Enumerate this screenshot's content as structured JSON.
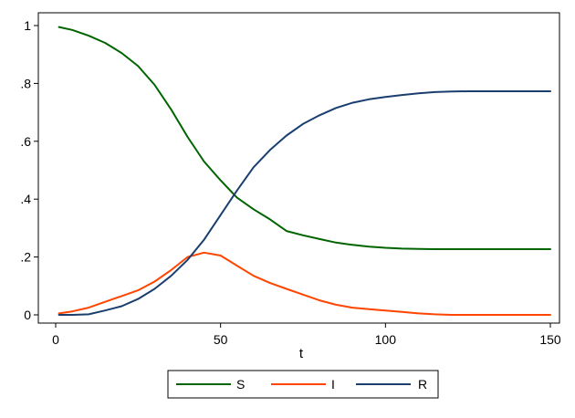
{
  "chart_data": {
    "type": "line",
    "title": "",
    "xlabel": "t",
    "ylabel": "",
    "xlim": [
      0,
      150
    ],
    "ylim": [
      0,
      1
    ],
    "xticks": [
      0,
      50,
      100,
      150
    ],
    "xtick_labels": [
      "0",
      "50",
      "100",
      "150"
    ],
    "yticks": [
      0,
      0.2,
      0.4,
      0.6,
      0.8,
      1
    ],
    "ytick_labels": [
      "0",
      ".2",
      ".4",
      ".6",
      ".8",
      "1"
    ],
    "grid": false,
    "legend_position": "bottom",
    "x": [
      1,
      5,
      10,
      15,
      20,
      25,
      30,
      35,
      40,
      45,
      50,
      55,
      60,
      65,
      70,
      75,
      80,
      85,
      90,
      95,
      100,
      105,
      110,
      115,
      120,
      125,
      130,
      140,
      150
    ],
    "series": [
      {
        "name": "S",
        "color": "#006400",
        "values": [
          0.995,
          0.985,
          0.965,
          0.94,
          0.905,
          0.86,
          0.795,
          0.71,
          0.615,
          0.53,
          0.465,
          0.405,
          0.365,
          0.33,
          0.29,
          0.275,
          0.262,
          0.25,
          0.242,
          0.236,
          0.232,
          0.229,
          0.228,
          0.227,
          0.227,
          0.227,
          0.227,
          0.227,
          0.227
        ]
      },
      {
        "name": "I",
        "color": "#ff4500",
        "values": [
          0.005,
          0.012,
          0.025,
          0.045,
          0.065,
          0.085,
          0.115,
          0.155,
          0.2,
          0.215,
          0.205,
          0.17,
          0.135,
          0.11,
          0.09,
          0.07,
          0.05,
          0.035,
          0.025,
          0.02,
          0.015,
          0.01,
          0.005,
          0.002,
          0.0,
          0.0,
          0.0,
          0.0,
          0.0
        ]
      },
      {
        "name": "R",
        "color": "#1a3f6f",
        "values": [
          0.0,
          0.0,
          0.002,
          0.015,
          0.03,
          0.055,
          0.09,
          0.135,
          0.19,
          0.26,
          0.345,
          0.43,
          0.51,
          0.57,
          0.62,
          0.66,
          0.69,
          0.715,
          0.733,
          0.745,
          0.753,
          0.76,
          0.766,
          0.77,
          0.772,
          0.773,
          0.773,
          0.773,
          0.773
        ]
      }
    ]
  }
}
